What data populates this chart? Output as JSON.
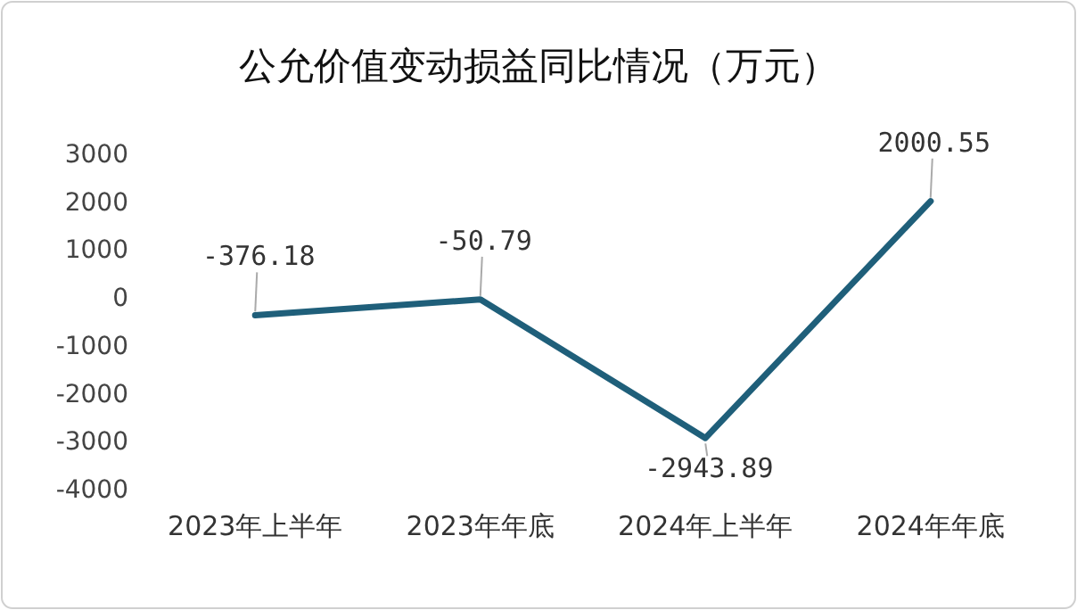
{
  "chart_data": {
    "type": "line",
    "title": "公允价值变动损益同比情况（万元）",
    "categories": [
      "2023年上半年",
      "2023年年底",
      "2024年上半年",
      "2024年年底"
    ],
    "series": [
      {
        "color": "#1f5f7a",
        "values": [
          -376.18,
          -50.79,
          -2943.89,
          2000.55
        ]
      }
    ],
    "ylim": [
      -4000,
      3000
    ],
    "yticks": [
      -4000,
      -3000,
      -2000,
      -1000,
      0,
      1000,
      2000,
      3000
    ],
    "data_labels": true
  }
}
